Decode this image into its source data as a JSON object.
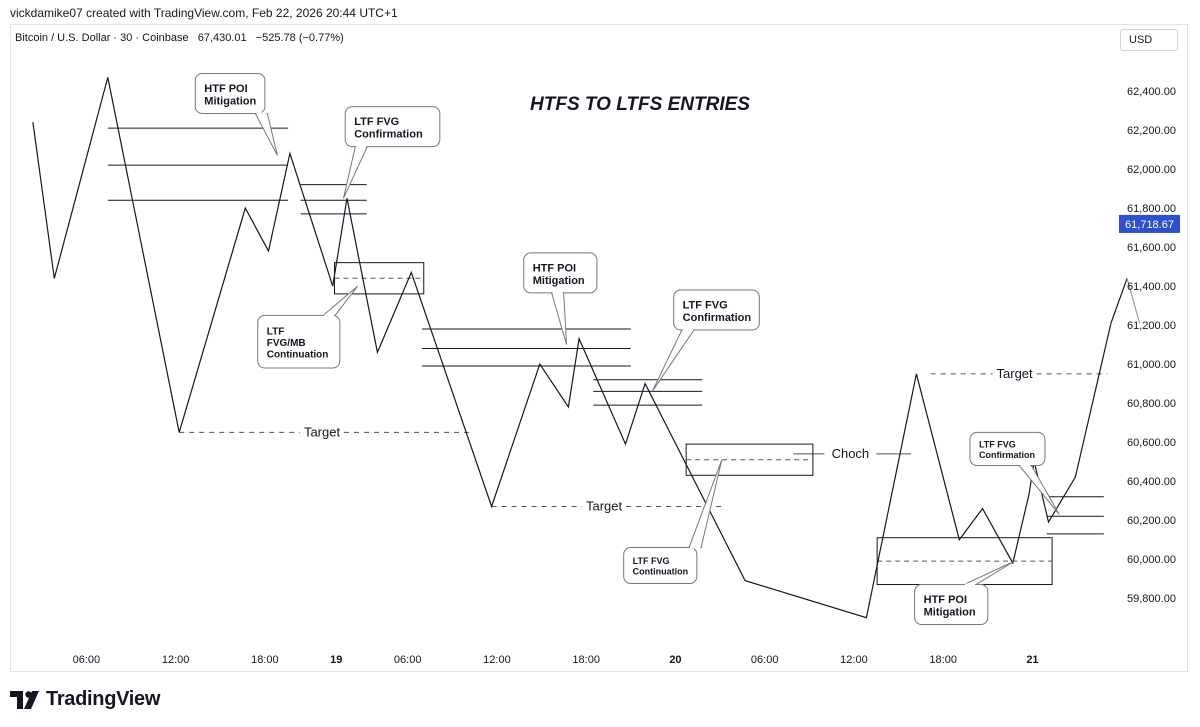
{
  "header": {
    "credit": "vickdamike07 created with TradingView.com, Feb 22, 2026 20:44 UTC+1",
    "symbol": "Bitcoin / U.S. Dollar · 30 · Coinbase",
    "price": "67,430.01",
    "change": "−525.78 (−0.77%)",
    "currency_button": "USD"
  },
  "footer": {
    "brand": "TradingView"
  },
  "chart_data": {
    "type": "line",
    "title": "HTFS TO LTFS ENTRIES",
    "xlabel": "",
    "ylabel": "",
    "ylim": [
      59560,
      62600
    ],
    "xlim": [
      0,
      63
    ],
    "x_ticks": [
      {
        "x": 4,
        "label": "06:00",
        "bold": false
      },
      {
        "x": 9,
        "label": "12:00",
        "bold": false
      },
      {
        "x": 14,
        "label": "18:00",
        "bold": false
      },
      {
        "x": 18,
        "label": "19",
        "bold": true
      },
      {
        "x": 22,
        "label": "06:00",
        "bold": false
      },
      {
        "x": 27,
        "label": "12:00",
        "bold": false
      },
      {
        "x": 32,
        "label": "18:00",
        "bold": false
      },
      {
        "x": 37,
        "label": "20",
        "bold": true
      },
      {
        "x": 42,
        "label": "06:00",
        "bold": false
      },
      {
        "x": 47,
        "label": "12:00",
        "bold": false
      },
      {
        "x": 52,
        "label": "18:00",
        "bold": false
      },
      {
        "x": 57,
        "label": "21",
        "bold": true
      }
    ],
    "y_ticks": [
      {
        "v": 62400,
        "label": "62,400.00"
      },
      {
        "v": 62200,
        "label": "62,200.00"
      },
      {
        "v": 62000,
        "label": "62,000.00"
      },
      {
        "v": 61800,
        "label": "61,800.00"
      },
      {
        "v": 61600,
        "label": "61,600.00"
      },
      {
        "v": 61400,
        "label": "61,400.00"
      },
      {
        "v": 61200,
        "label": "61,200.00"
      },
      {
        "v": 61000,
        "label": "61,000.00"
      },
      {
        "v": 60800,
        "label": "60,800.00"
      },
      {
        "v": 60600,
        "label": "60,600.00"
      },
      {
        "v": 60400,
        "label": "60,400.00"
      },
      {
        "v": 60200,
        "label": "60,200.00"
      },
      {
        "v": 60000,
        "label": "60,000.00"
      },
      {
        "v": 59800,
        "label": "59,800.00"
      }
    ],
    "current_price": {
      "v": 61718.67,
      "label": "61,718.67",
      "color": "#2f4fd1"
    },
    "series": [
      {
        "line_color": "#131722",
        "x": [
          1,
          2.2,
          5.2,
          9.2,
          12.9,
          14.2,
          15.4,
          17.8,
          18.6,
          20.3,
          22.2,
          26.7,
          29.4,
          31,
          31.6,
          34.2,
          35.3,
          40.9,
          47.7,
          50.5,
          52.9,
          54.2,
          55.9,
          56.8,
          57.1,
          57.9,
          59.4,
          61.4
        ],
        "values": [
          62240,
          61440,
          62470,
          60650,
          61800,
          61580,
          62080,
          61400,
          61850,
          61060,
          61470,
          60270,
          61000,
          60780,
          61130,
          60590,
          60900,
          59890,
          59700,
          60950,
          60100,
          60260,
          59980,
          60330,
          60500,
          60190,
          60420,
          61210
        ]
      },
      {
        "line_color": "#131722",
        "x": [
          61.4,
          62.3
        ],
        "values": [
          61210,
          61440
        ]
      },
      {
        "line_color": "#9aa0a6",
        "x": [
          62.3,
          63
        ],
        "values": [
          61440,
          61210
        ]
      }
    ],
    "levels": [
      {
        "x1": 5.2,
        "x2": 15.3,
        "v": 62210
      },
      {
        "x1": 5.2,
        "x2": 15.3,
        "v": 62020
      },
      {
        "x1": 5.2,
        "x2": 15.3,
        "v": 61840
      },
      {
        "x1": 16,
        "x2": 19.7,
        "v": 61920
      },
      {
        "x1": 16,
        "x2": 19.7,
        "v": 61840
      },
      {
        "x1": 16,
        "x2": 19.7,
        "v": 61770
      },
      {
        "x1": 22.8,
        "x2": 34.5,
        "v": 61180
      },
      {
        "x1": 22.8,
        "x2": 34.5,
        "v": 61080
      },
      {
        "x1": 22.8,
        "x2": 34.5,
        "v": 60990
      },
      {
        "x1": 32.4,
        "x2": 38.5,
        "v": 60920
      },
      {
        "x1": 32.4,
        "x2": 38.5,
        "v": 60860
      },
      {
        "x1": 32.4,
        "x2": 38.5,
        "v": 60790
      },
      {
        "x1": 57.8,
        "x2": 61,
        "v": 60320
      },
      {
        "x1": 57.8,
        "x2": 61,
        "v": 60220
      },
      {
        "x1": 57.8,
        "x2": 61,
        "v": 60130
      }
    ],
    "targets": [
      {
        "label": "Target",
        "x1": 9.2,
        "x2": 25.6,
        "v": 60650,
        "label_x": 17.2
      },
      {
        "label": "Target",
        "x1": 26.7,
        "x2": 39.8,
        "v": 60270,
        "label_x": 33
      },
      {
        "label": "Target",
        "x1": 51.3,
        "x2": 61.2,
        "v": 60950,
        "label_x": 56
      }
    ],
    "choch": {
      "label": "Choch",
      "x1": 43.6,
      "x2": 50.2,
      "v": 60540,
      "label_x": 46.8
    },
    "boxes": [
      {
        "x1": 17.9,
        "x2": 22.9,
        "v1": 61520,
        "v2": 61360,
        "mid": 61440
      },
      {
        "x1": 37.6,
        "x2": 44.7,
        "v1": 60590,
        "v2": 60430,
        "mid": 60510
      },
      {
        "x1": 48.3,
        "x2": 58.1,
        "v1": 60110,
        "v2": 59870,
        "mid": 59990
      }
    ],
    "annotations": [
      {
        "lines": [
          "HTF POI",
          "Mitigation"
        ],
        "bx": 10.1,
        "bv": 62490,
        "bw": 3.9,
        "bh": 205,
        "font": 11,
        "tip_x": 14.7,
        "tip_v": 62070,
        "base_x": 13.8
      },
      {
        "lines": [
          "LTF FVG",
          "Confirmation"
        ],
        "bx": 18.5,
        "bv": 62320,
        "bw": 5.3,
        "bh": 205,
        "font": 11,
        "tip_x": 18.4,
        "tip_v": 61850,
        "base_x": 19.4
      },
      {
        "lines": [
          "LTF",
          "FVG/MB",
          "Continuation"
        ],
        "bx": 13.6,
        "bv": 61250,
        "bw": 4.6,
        "bh": 270,
        "font": 10,
        "tip_x": 19.2,
        "tip_v": 61400,
        "base_x": 17.6
      },
      {
        "lines": [
          "HTF POI",
          "Mitigation"
        ],
        "bx": 28.5,
        "bv": 61570,
        "bw": 4.1,
        "bh": 205,
        "font": 11,
        "tip_x": 30.9,
        "tip_v": 61100,
        "base_x": 30.4
      },
      {
        "lines": [
          "LTF FVG",
          "Confirmation"
        ],
        "bx": 36.9,
        "bv": 61380,
        "bw": 4.8,
        "bh": 205,
        "font": 11,
        "tip_x": 35.7,
        "tip_v": 60860,
        "base_x": 37.7
      },
      {
        "lines": [
          "LTF FVG",
          "Continuation"
        ],
        "bx": 34.1,
        "bv": 60060,
        "bw": 4.1,
        "bh": 185,
        "font": 9,
        "tip_x": 39.6,
        "tip_v": 60510,
        "base_x": 38.1
      },
      {
        "lines": [
          "HTF POI",
          "Mitigation"
        ],
        "bx": 50.4,
        "bv": 59870,
        "bw": 4.1,
        "bh": 205,
        "font": 11,
        "tip_x": 56,
        "tip_v": 59990,
        "base_x": 53.5
      },
      {
        "lines": [
          "LTF FVG",
          "Confirmation"
        ],
        "bx": 53.5,
        "bv": 60650,
        "bw": 4.2,
        "bh": 170,
        "font": 9,
        "tip_x": 58.5,
        "tip_v": 60230,
        "base_x": 56.6
      }
    ]
  }
}
